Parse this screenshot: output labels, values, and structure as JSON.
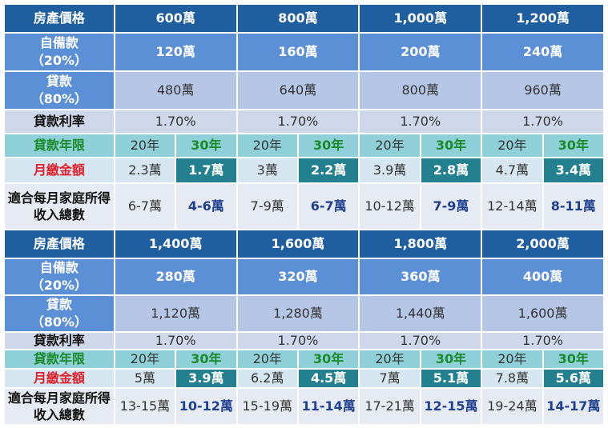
{
  "labels": {
    "price": "房產價格",
    "down_line1": "自備款",
    "down_line2": "（20%）",
    "loan_line1": "貸款",
    "loan_line2": "（80%）",
    "rate": "貸款利率",
    "term": "貸款年限",
    "payment": "月繳金額",
    "income": "適合每月家庭所得收入總數"
  },
  "blocks": [
    {
      "columns": [
        {
          "price": "600萬",
          "down": "120萬",
          "loan": "480萬",
          "rate": "1.70%",
          "term20": "20年",
          "term30": "30年",
          "pay20": "2.3萬",
          "pay30": "1.7萬",
          "inc20": "6-7萬",
          "inc30": "4-6萬"
        },
        {
          "price": "800萬",
          "down": "160萬",
          "loan": "640萬",
          "rate": "1.70%",
          "term20": "20年",
          "term30": "30年",
          "pay20": "3萬",
          "pay30": "2.2萬",
          "inc20": "7-9萬",
          "inc30": "6-7萬"
        },
        {
          "price": "1,000萬",
          "down": "200萬",
          "loan": "800萬",
          "rate": "1.70%",
          "term20": "20年",
          "term30": "30年",
          "pay20": "3.9萬",
          "pay30": "2.8萬",
          "inc20": "10-12萬",
          "inc30": "7-9萬"
        },
        {
          "price": "1,200萬",
          "down": "240萬",
          "loan": "960萬",
          "rate": "1.70%",
          "term20": "20年",
          "term30": "30年",
          "pay20": "4.7萬",
          "pay30": "3.4萬",
          "inc20": "12-14萬",
          "inc30": "8-11萬"
        }
      ]
    },
    {
      "columns": [
        {
          "price": "1,400萬",
          "down": "280萬",
          "loan": "1,120萬",
          "rate": "1.70%",
          "term20": "20年",
          "term30": "30年",
          "pay20": "5萬",
          "pay30": "3.9萬",
          "inc20": "13-15萬",
          "inc30": "10-12萬"
        },
        {
          "price": "1,600萬",
          "down": "320萬",
          "loan": "1,280萬",
          "rate": "1.70%",
          "term20": "20年",
          "term30": "30年",
          "pay20": "6.2萬",
          "pay30": "4.5萬",
          "inc20": "15-19萬",
          "inc30": "11-14萬"
        },
        {
          "price": "1,800萬",
          "down": "360萬",
          "loan": "1,440萬",
          "rate": "1.70%",
          "term20": "20年",
          "term30": "30年",
          "pay20": "7萬",
          "pay30": "5.1萬",
          "inc20": "17-21萬",
          "inc30": "12-15萬"
        },
        {
          "price": "2,000萬",
          "down": "400萬",
          "loan": "1,600萬",
          "rate": "1.70%",
          "term20": "20年",
          "term30": "30年",
          "pay20": "7.8萬",
          "pay30": "5.6萬",
          "inc20": "19-24萬",
          "inc30": "14-17萬"
        }
      ]
    }
  ],
  "colors": {
    "header": "#1f5fa0",
    "down_payment": "#5b8fd6",
    "loan": "#b6c6e6",
    "term": "#8fd0d8",
    "highlight": "#23808e",
    "thirty_year_text": "#1a8a2a",
    "payment_label": "#e0202a"
  }
}
